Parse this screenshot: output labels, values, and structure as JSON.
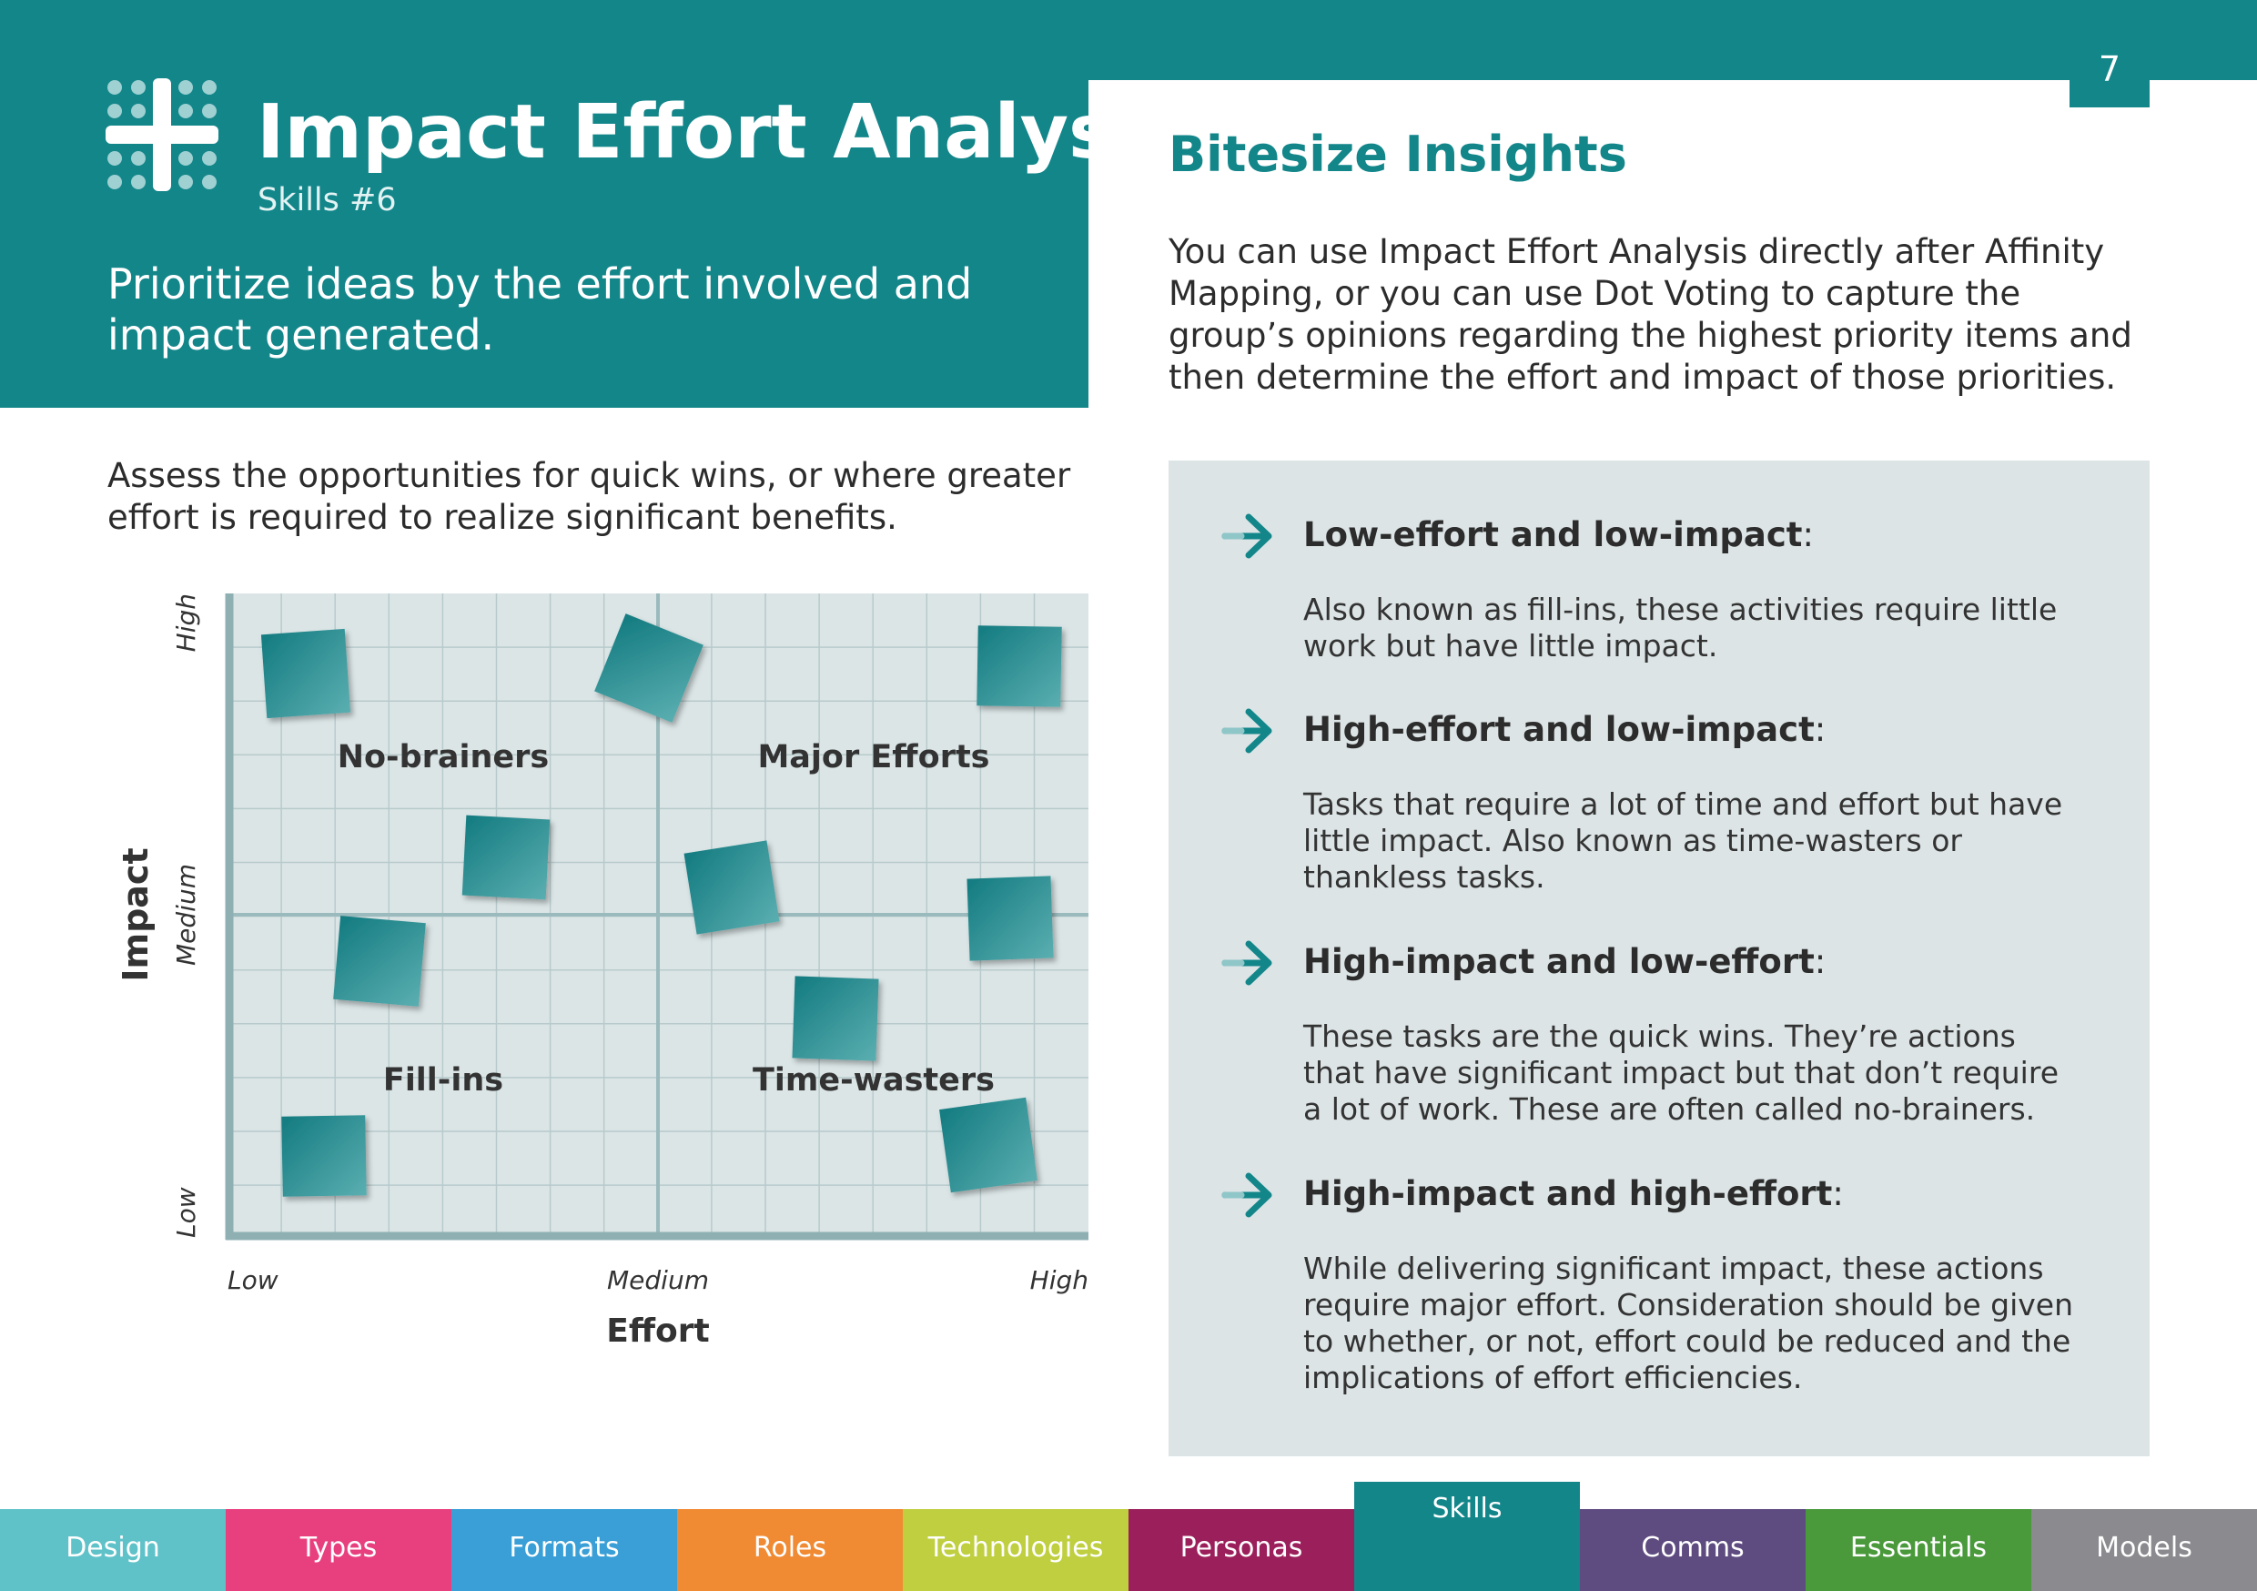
{
  "header": {
    "title": "Impact Effort Analysis",
    "subtitle": "Skills #6",
    "tagline": "Prioritize ideas by the effort involved and impact generated.",
    "page_number": "7",
    "logo_icon": "plus-grid-icon",
    "brand_color": "#13868a"
  },
  "lead_text": "Assess the opportunities for quick wins, or where greater effort is required to realize significant benefits.",
  "matrix": {
    "x_axis_label": "Effort",
    "y_axis_label": "Impact",
    "x_ticks": [
      "Low",
      "Medium",
      "High"
    ],
    "y_ticks": [
      "Low",
      "Medium",
      "High"
    ],
    "quadrants": {
      "top_left": "No-brainers",
      "top_right": "Major Efforts",
      "bottom_left": "Fill-ins",
      "bottom_right": "Time-wasters"
    },
    "grid_color": "#dbe5e6",
    "note_color": "#1c8a8e"
  },
  "right": {
    "title": "Bitesize Insights",
    "paragraph": "You can use Impact Effort Analysis directly after Affinity Mapping, or you can use Dot Voting to capture the group’s opinions regarding the highest priority items and then determine the effort and impact of those priorities.",
    "insights": [
      {
        "heading": "Low-effort and low-impact",
        "body": "Also known as fill-ins, these activities require little work but have little impact."
      },
      {
        "heading": "High-effort and low-impact",
        "body": "Tasks that require a lot of time and effort but have little impact. Also known as time-wasters or thankless tasks."
      },
      {
        "heading": "High-impact and low-effort",
        "body": "These tasks are the quick wins. They’re actions that have significant impact but that don’t require a lot of work. These are often called no-brainers."
      },
      {
        "heading": "High-impact and high-effort",
        "body": "While delivering significant impact, these actions require major effort. Consideration should be given to whether, or not, effort could be reduced and the implications of effort efficiencies."
      }
    ],
    "arrow_icon": "arrow-right-icon"
  },
  "nav": {
    "tabs": [
      {
        "label": "Design",
        "color": "#5fc2c9"
      },
      {
        "label": "Types",
        "color": "#e8407f"
      },
      {
        "label": "Formats",
        "color": "#3a9fd6"
      },
      {
        "label": "Roles",
        "color": "#f08a33"
      },
      {
        "label": "Technologies",
        "color": "#bfcf3f"
      },
      {
        "label": "Personas",
        "color": "#9b1f5b"
      },
      {
        "label": "Skills",
        "color": "#13868a",
        "active": true
      },
      {
        "label": "Comms",
        "color": "#5e4b80"
      },
      {
        "label": "Essentials",
        "color": "#4a9a3c"
      },
      {
        "label": "Models",
        "color": "#8a8a8f"
      }
    ]
  }
}
